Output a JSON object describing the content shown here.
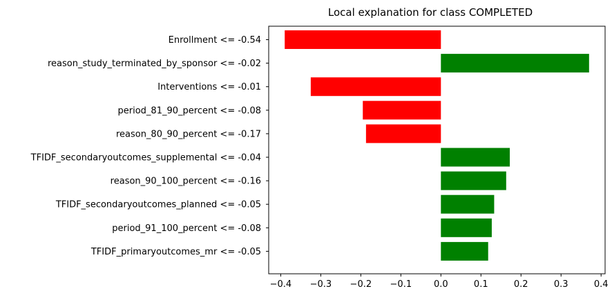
{
  "chart_data": {
    "type": "bar",
    "orientation": "horizontal",
    "title": "Local explanation for class COMPLETED",
    "xlabel": "",
    "ylabel": "",
    "grid": false,
    "xlim": [
      -0.43,
      0.41
    ],
    "categories": [
      "Enrollment <= -0.54",
      "reason_study_terminated_by_sponsor <= -0.02",
      "Interventions <= -0.01",
      "period_81_90_percent <= -0.08",
      "reason_80_90_percent <= -0.17",
      "TFIDF_secondaryoutcomes_supplemental <= -0.04",
      "reason_90_100_percent <= -0.16",
      "TFIDF_secondaryoutcomes_planned <= -0.05",
      "period_91_100_percent <= -0.08",
      "TFIDF_primaryoutcomes_mr <= -0.05"
    ],
    "values": [
      -0.39,
      0.37,
      -0.325,
      -0.195,
      -0.187,
      0.172,
      0.163,
      0.133,
      0.127,
      0.118
    ],
    "xticks": [
      -0.4,
      -0.3,
      -0.2,
      -0.1,
      0.0,
      0.1,
      0.2,
      0.3,
      0.4
    ],
    "xtick_labels": [
      "−0.4",
      "−0.3",
      "−0.2",
      "−0.1",
      "0.0",
      "0.1",
      "0.2",
      "0.3",
      "0.4"
    ],
    "colors": {
      "positive": "#008000",
      "negative": "#ff0000",
      "axis": "#000000",
      "background": "#ffffff"
    }
  }
}
